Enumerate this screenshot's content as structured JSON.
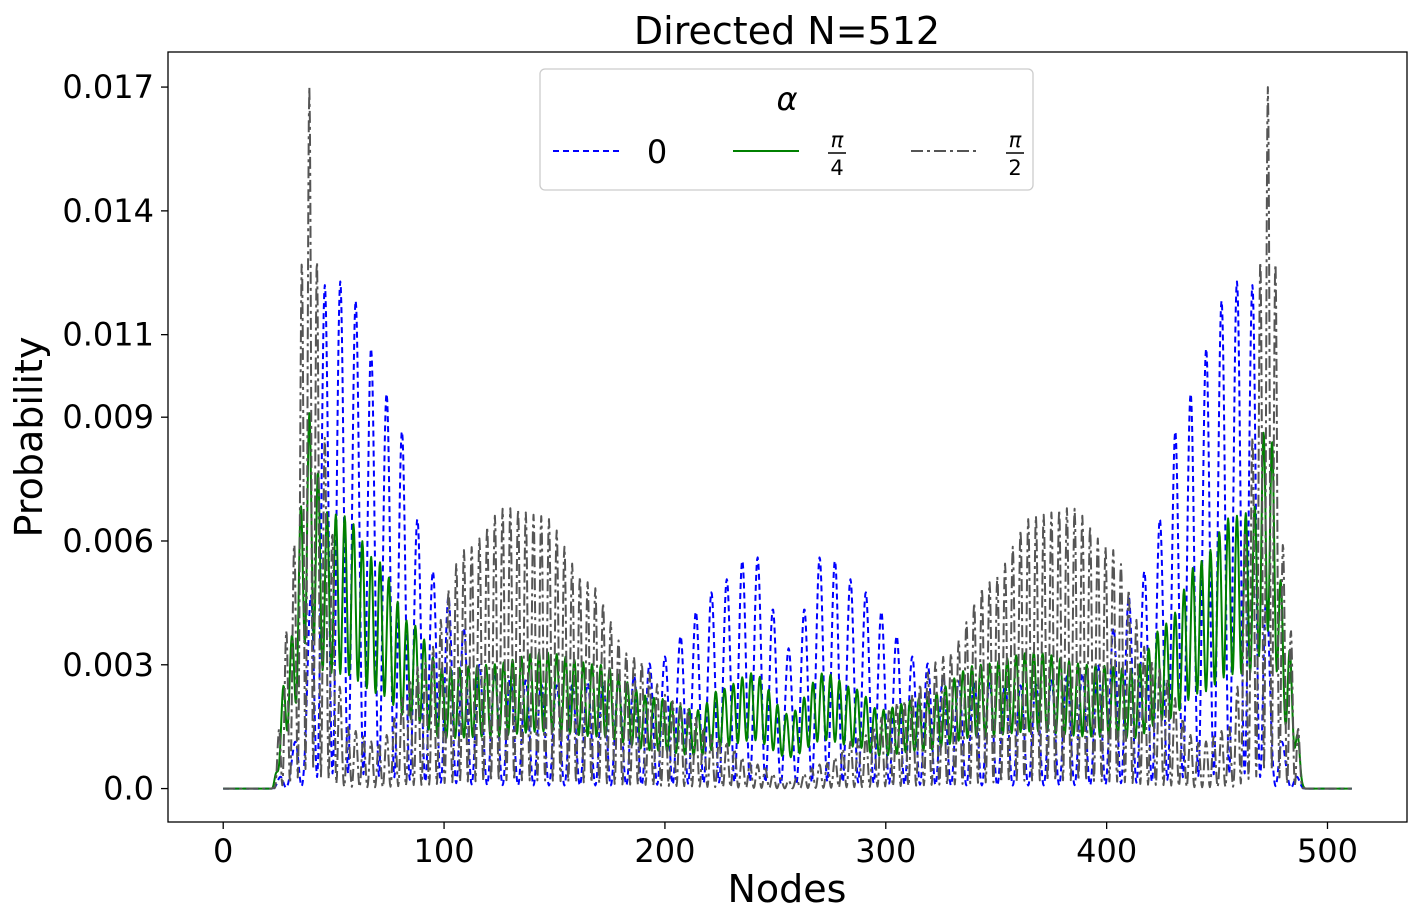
{
  "chart_data": {
    "type": "line",
    "title": "Directed N=512",
    "xlabel": "Nodes",
    "ylabel": "Probability",
    "xlim": [
      -25,
      536
    ],
    "ylim": [
      -0.00081,
      0.01785
    ],
    "xticks": [
      0,
      100,
      200,
      300,
      400,
      500
    ],
    "xtick_labels": [
      "0",
      "100",
      "200",
      "300",
      "400",
      "500"
    ],
    "yticks": [
      0.0,
      0.003,
      0.006,
      0.009,
      0.011,
      0.014,
      0.017
    ],
    "ytick_labels": [
      "0.0",
      "0.003",
      "0.006",
      "0.009",
      "0.011",
      "0.014",
      "0.017"
    ],
    "grid": false,
    "legend": {
      "title": "α",
      "position": "upper-center",
      "columns": 3
    },
    "series": [
      {
        "name": "0",
        "name_display": {
          "type": "text",
          "text": "0"
        },
        "color": "#0000ff",
        "dash": "dashed",
        "x_range": [
          0,
          511
        ],
        "envelope_peaks": [
          {
            "x": 0,
            "y": 0.0
          },
          {
            "x": 22,
            "y": 0.0
          },
          {
            "x": 30,
            "y": 0.0007
          },
          {
            "x": 36,
            "y": 0.002
          },
          {
            "x": 46,
            "y": 0.0122
          },
          {
            "x": 55,
            "y": 0.0123
          },
          {
            "x": 62,
            "y": 0.0117
          },
          {
            "x": 69,
            "y": 0.0104
          },
          {
            "x": 75,
            "y": 0.0095
          },
          {
            "x": 80,
            "y": 0.0088
          },
          {
            "x": 86,
            "y": 0.0068
          },
          {
            "x": 93,
            "y": 0.0054
          },
          {
            "x": 100,
            "y": 0.0047
          },
          {
            "x": 120,
            "y": 0.0028
          },
          {
            "x": 150,
            "y": 0.0025
          },
          {
            "x": 180,
            "y": 0.0026
          },
          {
            "x": 200,
            "y": 0.0032
          },
          {
            "x": 215,
            "y": 0.0043
          },
          {
            "x": 225,
            "y": 0.005
          },
          {
            "x": 240,
            "y": 0.0057
          },
          {
            "x": 256,
            "y": 0.0034
          },
          {
            "x": 272,
            "y": 0.0057
          },
          {
            "x": 287,
            "y": 0.005
          },
          {
            "x": 297,
            "y": 0.0043
          },
          {
            "x": 312,
            "y": 0.0032
          },
          {
            "x": 332,
            "y": 0.0026
          },
          {
            "x": 362,
            "y": 0.0025
          },
          {
            "x": 392,
            "y": 0.0028
          },
          {
            "x": 412,
            "y": 0.0047
          },
          {
            "x": 419,
            "y": 0.0054
          },
          {
            "x": 426,
            "y": 0.0068
          },
          {
            "x": 432,
            "y": 0.0088
          },
          {
            "x": 437,
            "y": 0.0095
          },
          {
            "x": 443,
            "y": 0.0104
          },
          {
            "x": 450,
            "y": 0.0117
          },
          {
            "x": 457,
            "y": 0.0123
          },
          {
            "x": 466,
            "y": 0.0122
          },
          {
            "x": 476,
            "y": 0.002
          },
          {
            "x": 482,
            "y": 0.0007
          },
          {
            "x": 490,
            "y": 0.0
          },
          {
            "x": 511,
            "y": 0.0
          }
        ],
        "oscillation_period": 7
      },
      {
        "name": "π/4",
        "name_display": {
          "type": "fraction",
          "numerator": "π",
          "denominator": "4"
        },
        "color": "#008000",
        "dash": "solid",
        "x_range": [
          0,
          511
        ],
        "envelope_peaks": [
          {
            "x": 0,
            "y": 0.0
          },
          {
            "x": 22,
            "y": 0.0
          },
          {
            "x": 30,
            "y": 0.0035
          },
          {
            "x": 39,
            "y": 0.0091
          },
          {
            "x": 46,
            "y": 0.0067
          },
          {
            "x": 55,
            "y": 0.0066
          },
          {
            "x": 70,
            "y": 0.0055
          },
          {
            "x": 85,
            "y": 0.004
          },
          {
            "x": 100,
            "y": 0.0029
          },
          {
            "x": 120,
            "y": 0.003
          },
          {
            "x": 145,
            "y": 0.0033
          },
          {
            "x": 170,
            "y": 0.003
          },
          {
            "x": 195,
            "y": 0.0022
          },
          {
            "x": 215,
            "y": 0.0019
          },
          {
            "x": 225,
            "y": 0.0024
          },
          {
            "x": 240,
            "y": 0.0028
          },
          {
            "x": 256,
            "y": 0.0018
          },
          {
            "x": 272,
            "y": 0.0028
          },
          {
            "x": 287,
            "y": 0.0024
          },
          {
            "x": 297,
            "y": 0.0019
          },
          {
            "x": 317,
            "y": 0.0022
          },
          {
            "x": 342,
            "y": 0.003
          },
          {
            "x": 367,
            "y": 0.0033
          },
          {
            "x": 392,
            "y": 0.003
          },
          {
            "x": 412,
            "y": 0.0029
          },
          {
            "x": 427,
            "y": 0.004
          },
          {
            "x": 442,
            "y": 0.0055
          },
          {
            "x": 457,
            "y": 0.0066
          },
          {
            "x": 466,
            "y": 0.0067
          },
          {
            "x": 473,
            "y": 0.0091
          },
          {
            "x": 482,
            "y": 0.0035
          },
          {
            "x": 490,
            "y": 0.0
          },
          {
            "x": 511,
            "y": 0.0
          }
        ],
        "oscillation_period": 4
      },
      {
        "name": "π/2",
        "name_display": {
          "type": "fraction",
          "numerator": "π",
          "denominator": "2"
        },
        "color": "#555555",
        "dash": "dashdot",
        "x_range": [
          0,
          511
        ],
        "envelope_peaks": [
          {
            "x": 0,
            "y": 0.0
          },
          {
            "x": 22,
            "y": 0.0
          },
          {
            "x": 30,
            "y": 0.0042
          },
          {
            "x": 39,
            "y": 0.017
          },
          {
            "x": 46,
            "y": 0.0085
          },
          {
            "x": 55,
            "y": 0.0015
          },
          {
            "x": 70,
            "y": 0.0011
          },
          {
            "x": 90,
            "y": 0.003
          },
          {
            "x": 110,
            "y": 0.0058
          },
          {
            "x": 128,
            "y": 0.0068
          },
          {
            "x": 145,
            "y": 0.0066
          },
          {
            "x": 165,
            "y": 0.005
          },
          {
            "x": 185,
            "y": 0.0032
          },
          {
            "x": 205,
            "y": 0.0021
          },
          {
            "x": 225,
            "y": 0.0012
          },
          {
            "x": 240,
            "y": 0.0006
          },
          {
            "x": 256,
            "y": 0.0002
          },
          {
            "x": 272,
            "y": 0.0006
          },
          {
            "x": 287,
            "y": 0.0012
          },
          {
            "x": 307,
            "y": 0.0021
          },
          {
            "x": 327,
            "y": 0.0032
          },
          {
            "x": 347,
            "y": 0.005
          },
          {
            "x": 367,
            "y": 0.0066
          },
          {
            "x": 384,
            "y": 0.0068
          },
          {
            "x": 402,
            "y": 0.0058
          },
          {
            "x": 422,
            "y": 0.003
          },
          {
            "x": 442,
            "y": 0.0011
          },
          {
            "x": 457,
            "y": 0.0015
          },
          {
            "x": 466,
            "y": 0.0085
          },
          {
            "x": 473,
            "y": 0.017
          },
          {
            "x": 482,
            "y": 0.0042
          },
          {
            "x": 490,
            "y": 0.0
          },
          {
            "x": 511,
            "y": 0.0
          }
        ],
        "oscillation_period": 3.5
      }
    ]
  }
}
